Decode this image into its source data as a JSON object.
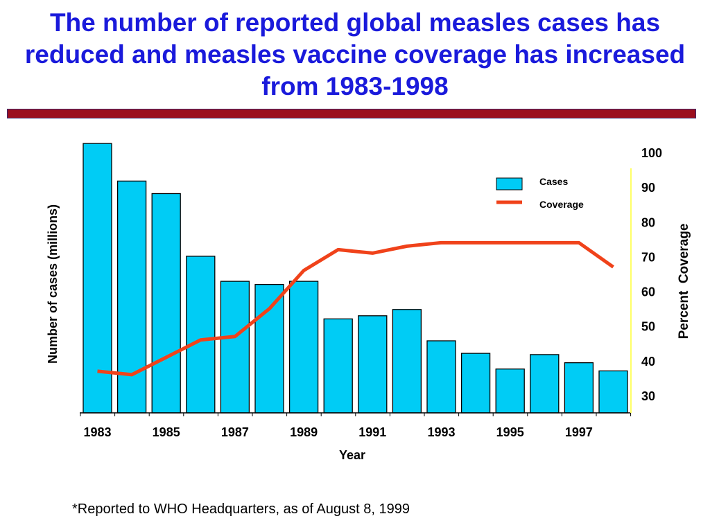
{
  "slide": {
    "title": "The number of reported global measles cases has reduced and measles vaccine coverage has increased from 1983-1998",
    "footnote": "*Reported to WHO Headquarters, as of August 8, 1999"
  },
  "colors": {
    "title": "#1a1adb",
    "rule": "#9b0e1e",
    "bar_fill": "#00ccf5",
    "bar_stroke": "#000000",
    "coverage_line": "#f0421a",
    "right_axis": "#ffff66"
  },
  "chart_data": {
    "type": "bar",
    "title": "",
    "xlabel": "Year",
    "ylabel": "Number of cases (millions)",
    "y2label": "Percent  Coverage",
    "categories": [
      1983,
      1984,
      1985,
      1986,
      1987,
      1988,
      1989,
      1990,
      1991,
      1992,
      1993,
      1994,
      1995,
      1996,
      1997,
      1998
    ],
    "x_tick_labels": [
      "1983",
      "1985",
      "1987",
      "1989",
      "1991",
      "1993",
      "1995",
      "1997"
    ],
    "series": [
      {
        "name": "Cases",
        "type": "bar",
        "axis": "left",
        "values": [
          4.3,
          3.7,
          3.5,
          2.5,
          2.1,
          2.05,
          2.1,
          1.5,
          1.55,
          1.65,
          1.15,
          0.95,
          0.7,
          0.93,
          0.8,
          0.67
        ]
      },
      {
        "name": "Coverage",
        "type": "line",
        "axis": "right",
        "values": [
          37,
          36,
          41,
          46,
          47,
          55,
          66,
          72,
          71,
          73,
          74,
          74,
          74,
          74,
          74,
          67
        ]
      }
    ],
    "ylim": [
      0,
      4.6
    ],
    "y2lim": [
      25,
      100
    ],
    "y2_ticks": [
      "100",
      "90",
      "80",
      "70",
      "60",
      "50",
      "40",
      "30"
    ],
    "legend_position": "top-right",
    "grid": false
  }
}
